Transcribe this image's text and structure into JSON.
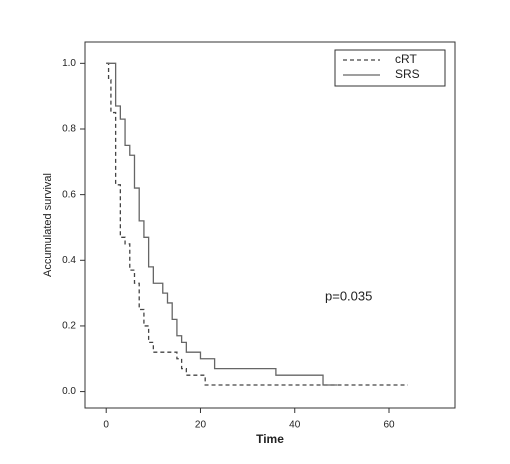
{
  "chart_data": {
    "type": "step",
    "x_label": "Time",
    "y_label": "Accumulated survival",
    "annotation": "p=0.035",
    "xlim": [
      -4.5,
      74
    ],
    "ylim": [
      -0.05,
      1.065
    ],
    "xticks": [
      0,
      20,
      40,
      60
    ],
    "yticks": [
      {
        "value": 0,
        "label": "0.0"
      },
      0.2,
      0.4,
      0.6,
      0.8,
      {
        "value": 1,
        "label": "1.0"
      }
    ],
    "legend": "upper right",
    "series": [
      {
        "name": "cRT",
        "color": "#444444",
        "dash": "dashed",
        "x": [
          0,
          0.5,
          1,
          2,
          3,
          4,
          5,
          6,
          7,
          8,
          9,
          10,
          15,
          16,
          17,
          21,
          64
        ],
        "values": [
          1,
          0.95,
          0.85,
          0.63,
          0.47,
          0.45,
          0.37,
          0.33,
          0.25,
          0.2,
          0.15,
          0.12,
          0.1,
          0.07,
          0.05,
          0.02,
          0.02
        ]
      },
      {
        "name": "SRS",
        "color": "#666666",
        "dash": "solid",
        "x": [
          0,
          2,
          3,
          4,
          5,
          6,
          7,
          8,
          9,
          10,
          12,
          13,
          14,
          15,
          16,
          17,
          20,
          23,
          36,
          46,
          49
        ],
        "values": [
          1,
          0.87,
          0.83,
          0.75,
          0.72,
          0.62,
          0.52,
          0.47,
          0.38,
          0.33,
          0.3,
          0.27,
          0.22,
          0.17,
          0.15,
          0.12,
          0.1,
          0.07,
          0.05,
          0.02,
          0.02
        ]
      }
    ]
  }
}
